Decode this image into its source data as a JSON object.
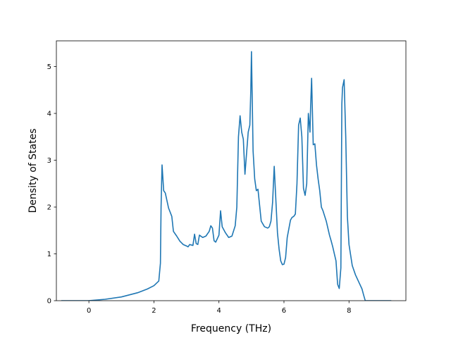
{
  "chart_data": {
    "type": "line",
    "title": "",
    "xlabel": "Frequency (THz)",
    "ylabel": "Density of States",
    "xlim": [
      -1.0,
      9.75
    ],
    "ylim": [
      0,
      5.55
    ],
    "xticks": [
      0,
      2,
      4,
      6,
      8
    ],
    "yticks": [
      0,
      1,
      2,
      3,
      4,
      5
    ],
    "grid": false,
    "colors": {
      "line": "#1f77b4",
      "axes": "#000000",
      "background": "#ffffff"
    },
    "series": [
      {
        "x": [
          -0.85,
          -0.5,
          0.0,
          0.5,
          1.0,
          1.5,
          1.8,
          2.0,
          2.15,
          2.2,
          2.22,
          2.25,
          2.3,
          2.35,
          2.45,
          2.55,
          2.6,
          2.7,
          2.8,
          2.9,
          3.0,
          3.05,
          3.1,
          3.2,
          3.25,
          3.3,
          3.35,
          3.4,
          3.5,
          3.6,
          3.7,
          3.75,
          3.8,
          3.85,
          3.9,
          4.0,
          4.05,
          4.1,
          4.2,
          4.3,
          4.4,
          4.5,
          4.55,
          4.6,
          4.65,
          4.7,
          4.75,
          4.8,
          4.9,
          4.95,
          4.98,
          5.0,
          5.05,
          5.1,
          5.15,
          5.2,
          5.3,
          5.4,
          5.5,
          5.55,
          5.6,
          5.65,
          5.7,
          5.8,
          5.85,
          5.9,
          5.95,
          6.0,
          6.05,
          6.1,
          6.2,
          6.25,
          6.3,
          6.35,
          6.4,
          6.45,
          6.5,
          6.55,
          6.6,
          6.65,
          6.7,
          6.75,
          6.8,
          6.82,
          6.85,
          6.9,
          6.95,
          7.0,
          7.05,
          7.1,
          7.15,
          7.2,
          7.3,
          7.4,
          7.45,
          7.5,
          7.55,
          7.6,
          7.65,
          7.7,
          7.75,
          7.78,
          7.8,
          7.85,
          7.9,
          7.95,
          8.0,
          8.1,
          8.2,
          8.3,
          8.4,
          8.45,
          8.5,
          9.0,
          9.3
        ],
        "y": [
          0,
          0,
          0.0,
          0.03,
          0.08,
          0.17,
          0.25,
          0.32,
          0.42,
          0.8,
          2.0,
          2.9,
          2.35,
          2.3,
          1.98,
          1.8,
          1.48,
          1.38,
          1.27,
          1.2,
          1.17,
          1.15,
          1.2,
          1.18,
          1.42,
          1.22,
          1.2,
          1.4,
          1.35,
          1.38,
          1.48,
          1.6,
          1.55,
          1.28,
          1.25,
          1.4,
          1.92,
          1.58,
          1.45,
          1.35,
          1.38,
          1.6,
          2.0,
          3.5,
          3.95,
          3.6,
          3.45,
          2.7,
          3.6,
          3.75,
          4.5,
          5.32,
          3.2,
          2.6,
          2.35,
          2.38,
          1.7,
          1.58,
          1.55,
          1.58,
          1.7,
          2.1,
          2.87,
          1.45,
          1.1,
          0.85,
          0.77,
          0.78,
          0.92,
          1.35,
          1.72,
          1.78,
          1.8,
          1.85,
          2.5,
          3.75,
          3.9,
          3.5,
          2.4,
          2.25,
          2.5,
          4.0,
          3.6,
          4.15,
          4.75,
          3.33,
          3.35,
          2.9,
          2.6,
          2.35,
          2.0,
          1.92,
          1.7,
          1.4,
          1.28,
          1.15,
          1.0,
          0.85,
          0.35,
          0.26,
          0.7,
          4.2,
          4.55,
          4.72,
          3.5,
          1.8,
          1.2,
          0.75,
          0.55,
          0.4,
          0.25,
          0.12,
          0.0,
          0,
          0
        ]
      }
    ]
  }
}
